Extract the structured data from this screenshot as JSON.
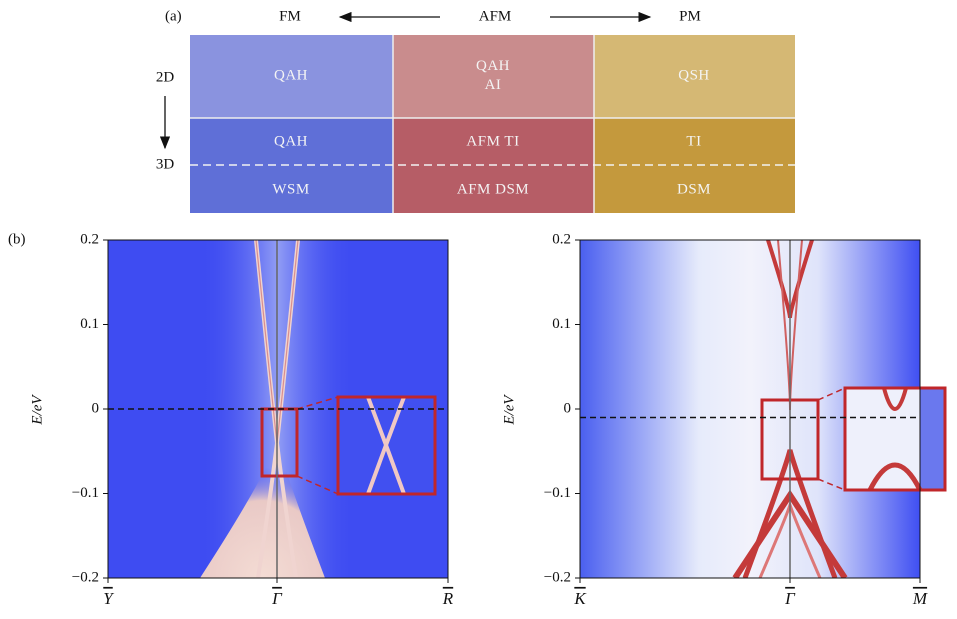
{
  "panel_a": {
    "label": "(a)",
    "columns": [
      "FM",
      "AFM",
      "PM"
    ],
    "rows": [
      "2D",
      "3D"
    ],
    "cells": [
      [
        [
          "QAH"
        ],
        [
          "QAH",
          "AI"
        ],
        [
          "QSH"
        ]
      ],
      [
        [
          "QAH"
        ],
        [
          "AFM TI"
        ],
        [
          "TI"
        ]
      ],
      [
        [
          "WSM"
        ],
        [
          "AFM DSM"
        ],
        [
          "DSM"
        ]
      ]
    ]
  },
  "panel_b": {
    "label": "(b)",
    "plots": [
      {
        "ylabel": "E/eV",
        "ylim": [
          -0.2,
          0.2
        ],
        "yticks": [
          {
            "value": -0.2,
            "label": "−0.2"
          },
          {
            "value": -0.1,
            "label": "−0.1"
          },
          0,
          0.1,
          0.2
        ],
        "xticks": [
          "Y",
          "Γ",
          "R"
        ],
        "fermi_line": 0
      },
      {
        "ylabel": "E/eV",
        "ylim": [
          -0.2,
          0.2
        ],
        "yticks": [
          {
            "value": -0.2,
            "label": "−0.2"
          },
          {
            "value": -0.1,
            "label": "−0.1"
          },
          0,
          0.1,
          0.2
        ],
        "xticks": [
          "K",
          "Γ",
          "M"
        ],
        "fermi_line": -0.01
      }
    ]
  }
}
